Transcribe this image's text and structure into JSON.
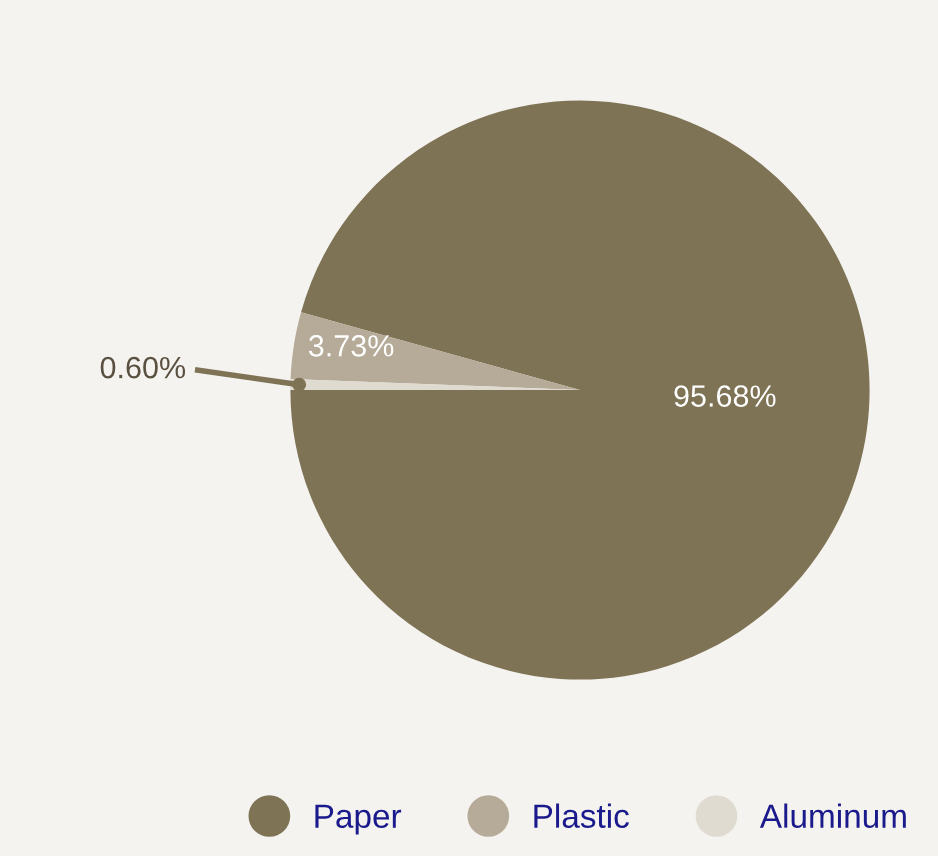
{
  "chart_data": {
    "type": "pie",
    "categories": [
      "Paper",
      "Plastic",
      "Aluminum"
    ],
    "values": [
      95.68,
      3.73,
      0.6
    ],
    "colors": [
      "#7f7356",
      "#b5ab98",
      "#e0dbd0"
    ],
    "value_labels": [
      "95.68%",
      "3.73%",
      "0.60%"
    ],
    "legend": "bottom right"
  }
}
